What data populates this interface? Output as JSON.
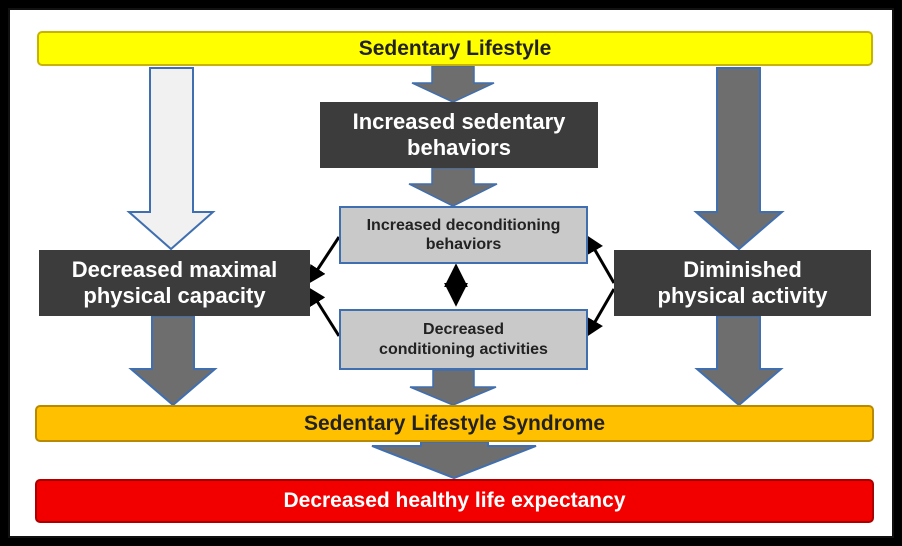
{
  "top_bar": {
    "text": "Sedentary Lifestyle"
  },
  "sedentary_behaviors": {
    "line1": "Increased sedentary",
    "line2": "behaviors"
  },
  "deconditioning": {
    "line1": "Increased deconditioning",
    "line2": "behaviors"
  },
  "conditioning": {
    "line1": "Decreased",
    "line2": "conditioning activities"
  },
  "left_box": {
    "line1": "Decreased maximal",
    "line2": "physical capacity"
  },
  "right_box": {
    "line1": "Diminished",
    "line2": "physical activity"
  },
  "syndrome_bar": {
    "text": "Sedentary Lifestyle Syndrome"
  },
  "bottom_bar": {
    "text": "Decreased healthy life expectancy"
  }
}
